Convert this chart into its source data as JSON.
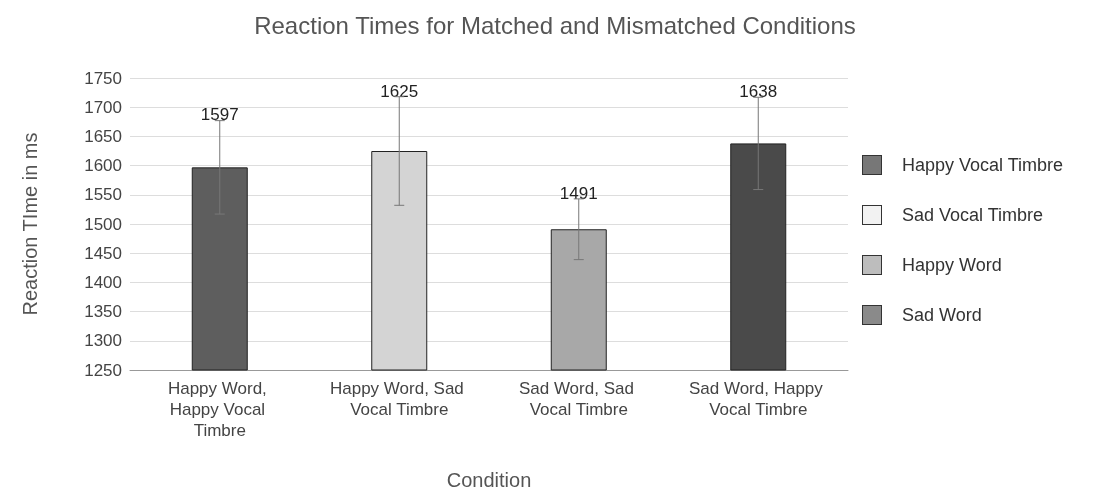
{
  "chart_data": {
    "type": "bar",
    "title": "Reaction Times for Matched and Mismatched Conditions",
    "xlabel": "Condition",
    "ylabel": "Reaction TIme in ms",
    "categories": [
      "Happy Word, Happy Vocal Timbre",
      "Happy Word, Sad Vocal Timbre",
      "Sad Word, Sad Vocal Timbre",
      "Sad Word, Happy Vocal Timbre"
    ],
    "values": [
      1597,
      1625,
      1491,
      1638
    ],
    "colors": [
      "#5e5e5e",
      "#d4d4d4",
      "#a8a8a8",
      "#4a4a4a"
    ],
    "errors": [
      80,
      93,
      52,
      79
    ],
    "data_labels": true,
    "annotations": [
      "Happy Vocal Timbre",
      "Sad Vocal Timbre",
      "Happy Word",
      "Sad Word"
    ],
    "ylim": [
      1250,
      1750
    ],
    "yticks": [
      1250,
      1300,
      1350,
      1400,
      1450,
      1500,
      1550,
      1600,
      1650,
      1700,
      1750
    ],
    "grid": "y",
    "legend": false
  }
}
